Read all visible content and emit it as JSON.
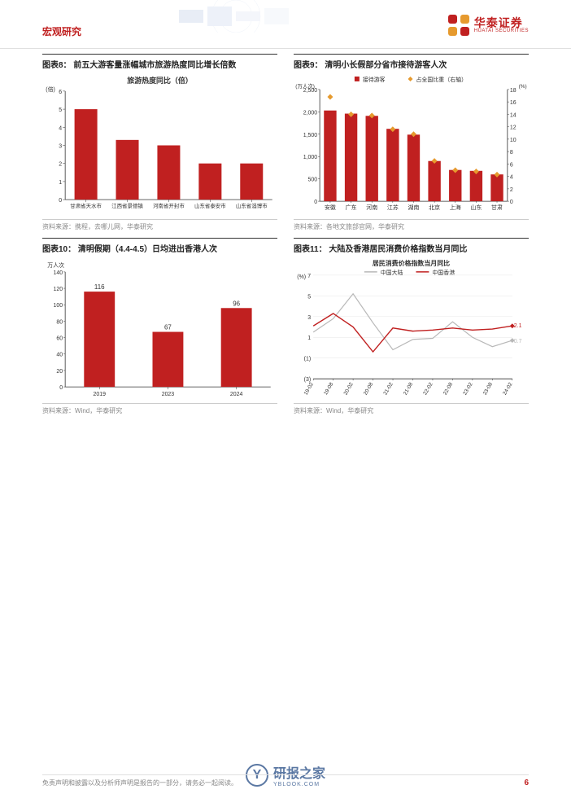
{
  "header": {
    "section_title": "宏观研究",
    "logo_cn": "华泰证券",
    "logo_en": "HUATAI SECURITIES",
    "logo_color": "#c02020"
  },
  "charts": {
    "c8": {
      "title": "图表8： 前五大游客量涨幅城市旅游热度同比增长倍数",
      "type": "bar",
      "chart_inner_title": "旅游热度同比（倍）",
      "y_unit": "(倍)",
      "categories": [
        "甘肃省天水市",
        "江西省景德镇",
        "河南省开封市",
        "山东省泰安市",
        "山东省淄博市"
      ],
      "values": [
        5.0,
        3.3,
        3.0,
        2.0,
        2.0
      ],
      "bar_color": "#c02020",
      "ylim": [
        0,
        6
      ],
      "ytick_step": 1,
      "title_fontsize": 9,
      "axis_fontsize": 7,
      "source": "资料来源：携程，去哪儿网，华泰研究"
    },
    "c9": {
      "title": "图表9： 清明小长假部分省市接待游客人次",
      "type": "bar_scatter_dual",
      "legend_bar": "接待游客",
      "legend_scatter": "占全国比重（右轴）",
      "y_left_unit": "(万人次)",
      "y_right_unit": "(%)",
      "categories": [
        "安徽",
        "广东",
        "河南",
        "江苏",
        "湖南",
        "北京",
        "上海",
        "山东",
        "甘肃"
      ],
      "bar_values": [
        2030,
        1960,
        1910,
        1620,
        1490,
        900,
        700,
        680,
        600
      ],
      "scatter_values": [
        16.8,
        14.0,
        13.8,
        11.6,
        10.8,
        6.5,
        5.0,
        4.8,
        4.3
      ],
      "bar_color": "#c02020",
      "scatter_color": "#e69a2e",
      "ylim_left": [
        0,
        2500
      ],
      "ytick_left": 500,
      "ylim_right": [
        0,
        18
      ],
      "ytick_right": 2,
      "axis_fontsize": 7,
      "source": "资料来源：各地文旅部官网，华泰研究"
    },
    "c10": {
      "title": "图表10： 清明假期（4.4-4.5）日均进出香港人次",
      "type": "bar",
      "y_unit": "万人次",
      "categories": [
        "2019",
        "2023",
        "2024"
      ],
      "values": [
        116,
        67,
        96
      ],
      "show_value_labels": true,
      "bar_color": "#c02020",
      "ylim": [
        0,
        140
      ],
      "ytick_step": 20,
      "axis_fontsize": 7,
      "source": "资料来源：Wind，华泰研究"
    },
    "c11": {
      "title": "图表11： 大陆及香港居民消费价格指数当月同比",
      "type": "line_dual",
      "chart_inner_title": "居民消费价格指数当月同比",
      "y_unit": "(%)",
      "legend_a": "中国大陆",
      "legend_b": "中国香港",
      "color_a": "#b8b8b8",
      "color_b": "#c02020",
      "x_labels": [
        "19-02",
        "19-08",
        "20-02",
        "20-08",
        "21-02",
        "21-08",
        "22-02",
        "22-08",
        "23-02",
        "23-08",
        "24-02"
      ],
      "ylim": [
        -3,
        7
      ],
      "yticks": [
        -3,
        -1,
        1,
        3,
        5,
        7
      ],
      "series_a": [
        1.5,
        2.8,
        5.2,
        2.4,
        -0.2,
        0.8,
        0.9,
        2.5,
        1.0,
        0.1,
        0.7
      ],
      "series_b": [
        2.1,
        3.3,
        2.0,
        -0.4,
        1.9,
        1.6,
        1.7,
        1.9,
        1.7,
        1.8,
        2.1
      ],
      "last_label_a": "0.7",
      "last_label_b": "2.1",
      "axis_fontsize": 7,
      "source": "资料来源：Wind，华泰研究"
    }
  },
  "footer": {
    "disclaimer": "免责声明和披露以及分析师声明是报告的一部分，请务必一起阅读。",
    "page_number": "6"
  },
  "watermark": {
    "text": "研报之家",
    "sub": "YBLOOK.COM",
    "glyph": "Y"
  },
  "colors": {
    "grid": "#e6e6e6",
    "axis": "#333333",
    "text": "#222222"
  }
}
